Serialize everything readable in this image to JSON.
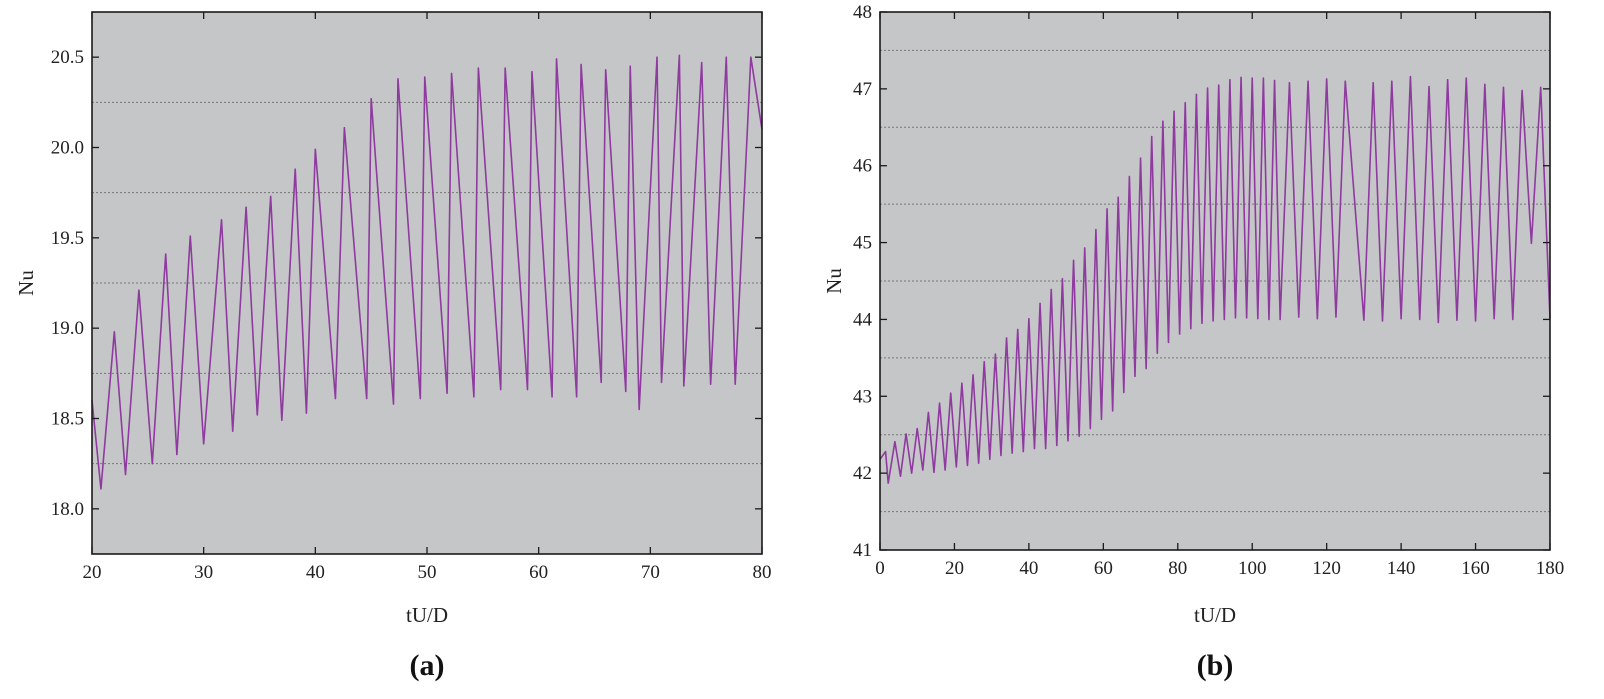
{
  "figure": {
    "panels": [
      "(a)",
      "(b)"
    ]
  },
  "chart_data": [
    {
      "type": "line",
      "panel_label": "(a)",
      "xlabel": "tU/D",
      "ylabel": "Nu",
      "xlim": [
        20,
        80
      ],
      "ylim": [
        17.75,
        20.75
      ],
      "xticks": [
        20,
        30,
        40,
        50,
        60,
        70,
        80
      ],
      "yticks": [
        18.0,
        18.5,
        19.0,
        19.5,
        20.0,
        20.5
      ],
      "ytick_labels": [
        "18.0",
        "18.5",
        "19.0",
        "19.5",
        "20.0",
        "20.5"
      ],
      "grid_y": [
        18.25,
        18.75,
        19.25,
        19.75,
        20.25
      ],
      "grid": "horizontal dashed",
      "line_color": "#8e3a9f",
      "background_color": "#c5c6c8",
      "series": [
        {
          "x": [
            20.0,
            20.8,
            22.0,
            23.0,
            24.2,
            25.4,
            26.6,
            27.6,
            28.8,
            30.0,
            31.6,
            32.6,
            33.8,
            34.8,
            36.0,
            37.0,
            38.2,
            39.2,
            40.0,
            41.8,
            42.6,
            44.6,
            45.0,
            47.0,
            47.4,
            49.4,
            49.8,
            51.8,
            52.2,
            54.2,
            54.6,
            56.6,
            57.0,
            59.0,
            59.4,
            61.2,
            61.6,
            63.4,
            63.8,
            65.6,
            66.0,
            67.8,
            68.2,
            69.0,
            70.6,
            71.0,
            72.6,
            73.0,
            74.6,
            75.4,
            76.8,
            77.6,
            79.0,
            80.0
          ],
          "y": [
            18.6,
            18.11,
            18.98,
            18.19,
            19.21,
            18.25,
            19.41,
            18.3,
            19.51,
            18.36,
            19.6,
            18.43,
            19.67,
            18.52,
            19.73,
            18.49,
            19.88,
            18.53,
            19.99,
            18.61,
            20.11,
            18.61,
            20.27,
            18.58,
            20.38,
            18.61,
            20.39,
            18.64,
            20.41,
            18.62,
            20.44,
            18.66,
            20.44,
            18.66,
            20.42,
            18.62,
            20.49,
            18.62,
            20.46,
            18.7,
            20.43,
            18.65,
            20.45,
            18.55,
            20.5,
            18.7,
            20.51,
            18.68,
            20.47,
            18.69,
            20.5,
            18.69,
            20.5,
            20.1
          ]
        }
      ]
    },
    {
      "type": "line",
      "panel_label": "(b)",
      "xlabel": "tU/D",
      "ylabel": "Nu",
      "xlim": [
        0,
        180
      ],
      "ylim": [
        41,
        48
      ],
      "xticks": [
        0,
        20,
        40,
        60,
        80,
        100,
        120,
        140,
        160,
        180
      ],
      "yticks": [
        41,
        42,
        43,
        44,
        45,
        46,
        47,
        48
      ],
      "ytick_labels": [
        "41",
        "42",
        "43",
        "44",
        "45",
        "46",
        "47",
        "48"
      ],
      "grid_y": [
        41.5,
        42.5,
        43.5,
        44.5,
        45.5,
        46.5,
        47.5
      ],
      "grid": "horizontal dashed",
      "line_color": "#8e3a9f",
      "background_color": "#c5c6c8",
      "series": [
        {
          "x": [
            0.0,
            1.5,
            2.2,
            4.0,
            5.5,
            7.0,
            8.5,
            10.0,
            11.5,
            13.0,
            14.5,
            16.0,
            17.5,
            19.0,
            20.5,
            22.0,
            23.5,
            25.0,
            26.5,
            28.0,
            29.5,
            31.0,
            32.5,
            34.0,
            35.5,
            37.0,
            38.5,
            40.0,
            41.5,
            43.0,
            44.5,
            46.0,
            47.5,
            49.0,
            50.5,
            52.0,
            53.5,
            55.0,
            56.5,
            58.0,
            59.5,
            61.0,
            62.5,
            64.0,
            65.5,
            67.0,
            68.5,
            70.0,
            71.5,
            73.0,
            74.5,
            76.0,
            77.5,
            79.0,
            80.5,
            82.0,
            83.5,
            85.0,
            86.5,
            88.0,
            89.5,
            91.0,
            92.5,
            94.0,
            95.5,
            97.0,
            98.5,
            100.0,
            101.5,
            103.0,
            104.5,
            106.0,
            107.5,
            110.0,
            112.5,
            115.0,
            117.5,
            120.0,
            122.5,
            125.0,
            130.0,
            132.5,
            135.0,
            137.5,
            140.0,
            142.5,
            145.0,
            147.5,
            150.0,
            152.5,
            155.0,
            157.5,
            160.0,
            162.5,
            165.0,
            167.5,
            170.0,
            172.5,
            175.0,
            177.5,
            180.0
          ],
          "y": [
            42.18,
            42.28,
            41.87,
            42.41,
            41.96,
            42.51,
            42.0,
            42.58,
            42.04,
            42.79,
            42.01,
            42.91,
            42.04,
            43.04,
            42.08,
            43.17,
            42.1,
            43.28,
            42.13,
            43.45,
            42.18,
            43.55,
            42.23,
            43.76,
            42.26,
            43.87,
            42.28,
            44.01,
            42.32,
            44.21,
            42.32,
            44.39,
            42.36,
            44.53,
            42.42,
            44.77,
            42.48,
            44.93,
            42.58,
            45.17,
            42.7,
            45.44,
            42.81,
            45.59,
            43.05,
            45.86,
            43.26,
            46.1,
            43.36,
            46.38,
            43.56,
            46.58,
            43.7,
            46.71,
            43.81,
            46.82,
            43.88,
            46.93,
            43.95,
            47.01,
            43.98,
            47.05,
            44.0,
            47.12,
            44.02,
            47.15,
            44.02,
            47.14,
            44.01,
            47.14,
            44.0,
            47.11,
            44.0,
            47.08,
            44.03,
            47.1,
            44.01,
            47.13,
            44.03,
            47.1,
            43.99,
            47.08,
            43.98,
            47.1,
            44.01,
            47.16,
            44.0,
            47.03,
            43.96,
            47.12,
            43.99,
            47.14,
            43.98,
            47.06,
            44.01,
            47.02,
            44.0,
            46.98,
            44.99,
            47.02,
            44.01
          ]
        }
      ]
    }
  ]
}
